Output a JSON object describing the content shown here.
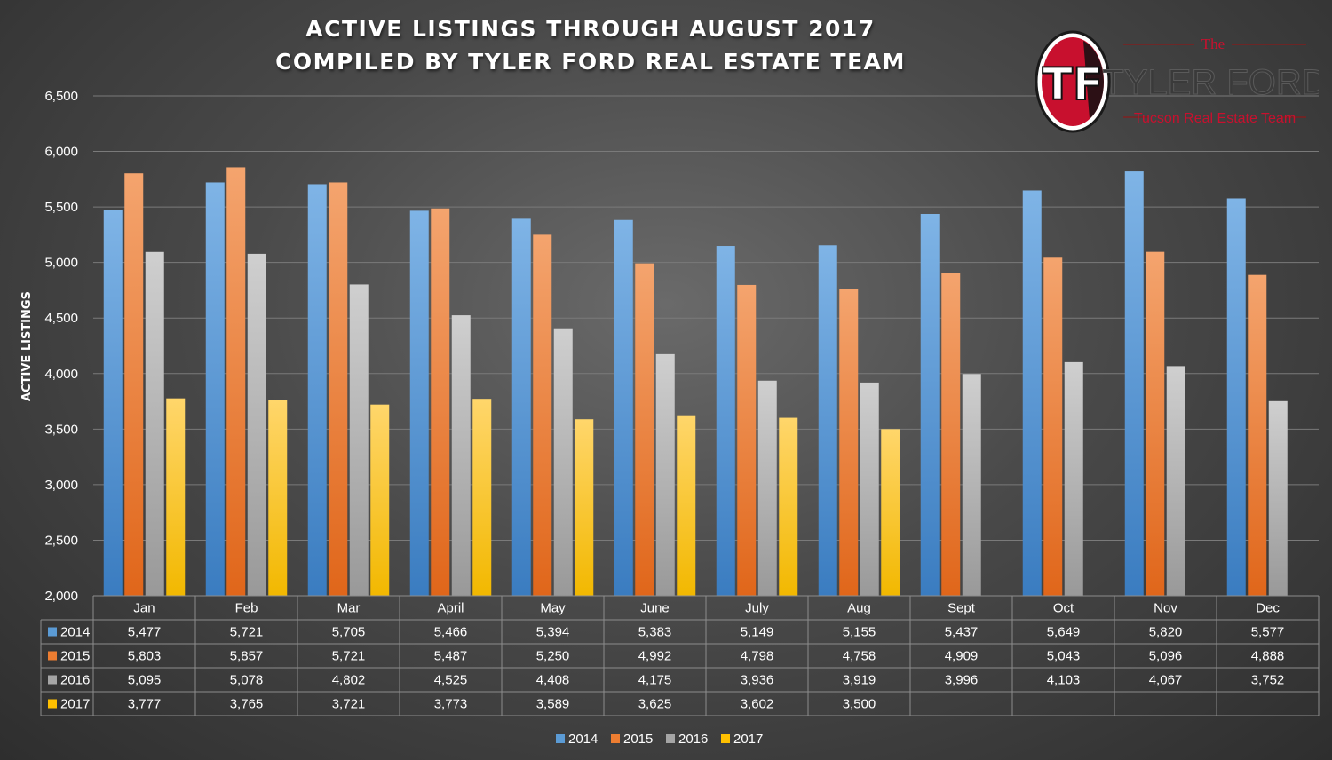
{
  "chart_data": {
    "type": "bar",
    "title": [
      "ACTIVE LISTINGS THROUGH AUGUST 2017",
      "COMPILED BY TYLER FORD REAL ESTATE TEAM"
    ],
    "ylabel": "ACTIVE LISTINGS",
    "ylim": [
      2000,
      6500
    ],
    "yticks": [
      2000,
      2500,
      3000,
      3500,
      4000,
      4500,
      5000,
      5500,
      6000,
      6500
    ],
    "ytick_labels": [
      "2,000",
      "2,500",
      "3,000",
      "3,500",
      "4,000",
      "4,500",
      "5,000",
      "5,500",
      "6,000",
      "6,500"
    ],
    "grid": true,
    "legend_position": "bottom",
    "categories": [
      "Jan",
      "Feb",
      "Mar",
      "April",
      "May",
      "June",
      "July",
      "Aug",
      "Sept",
      "Oct",
      "Nov",
      "Dec"
    ],
    "series": [
      {
        "name": "2014",
        "color": "#5b9bd5",
        "values": [
          5477,
          5721,
          5705,
          5466,
          5394,
          5383,
          5149,
          5155,
          5437,
          5649,
          5820,
          5577
        ],
        "labels": [
          "5,477",
          "5,721",
          "5,705",
          "5,466",
          "5,394",
          "5,383",
          "5,149",
          "5,155",
          "5,437",
          "5,649",
          "5,820",
          "5,577"
        ]
      },
      {
        "name": "2015",
        "color": "#ed7d31",
        "values": [
          5803,
          5857,
          5721,
          5487,
          5250,
          4992,
          4798,
          4758,
          4909,
          5043,
          5096,
          4888
        ],
        "labels": [
          "5,803",
          "5,857",
          "5,721",
          "5,487",
          "5,250",
          "4,992",
          "4,798",
          "4,758",
          "4,909",
          "5,043",
          "5,096",
          "4,888"
        ]
      },
      {
        "name": "2016",
        "color": "#a5a5a5",
        "values": [
          5095,
          5078,
          4802,
          4525,
          4408,
          4175,
          3936,
          3919,
          3996,
          4103,
          4067,
          3752
        ],
        "labels": [
          "5,095",
          "5,078",
          "4,802",
          "4,525",
          "4,408",
          "4,175",
          "3,936",
          "3,919",
          "3,996",
          "4,103",
          "4,067",
          "3,752"
        ]
      },
      {
        "name": "2017",
        "color": "#ffc000",
        "values": [
          3777,
          3765,
          3721,
          3773,
          3589,
          3625,
          3602,
          3500,
          null,
          null,
          null,
          null
        ],
        "labels": [
          "3,777",
          "3,765",
          "3,721",
          "3,773",
          "3,589",
          "3,625",
          "3,602",
          "3,500",
          "",
          "",
          "",
          ""
        ]
      }
    ]
  },
  "logo": {
    "monogram": "TF",
    "the": "The",
    "name": "TYLER FORD",
    "tagline": "Tucson Real Estate Team"
  }
}
